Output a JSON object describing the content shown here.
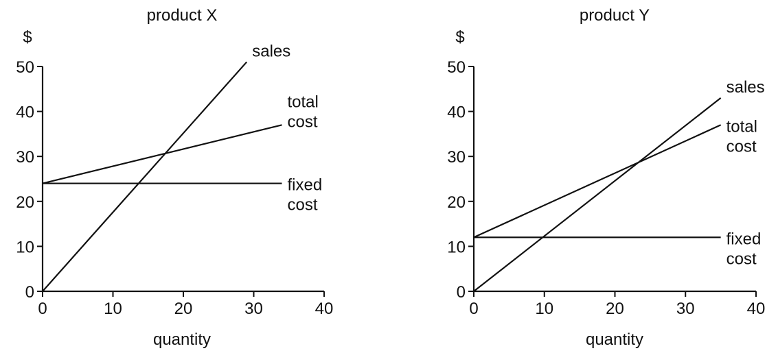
{
  "chart_data": [
    {
      "type": "line",
      "title": "product X",
      "ylabel": "$",
      "xlabel": "quantity",
      "xlim": [
        0,
        40
      ],
      "ylim": [
        0,
        50
      ],
      "xticks": [
        0,
        10,
        20,
        30,
        40
      ],
      "yticks": [
        0,
        10,
        20,
        30,
        40,
        50
      ],
      "series": [
        {
          "name": "sales",
          "x": [
            0,
            29
          ],
          "y": [
            0,
            51
          ]
        },
        {
          "name": "total cost",
          "x": [
            0,
            34
          ],
          "y": [
            24,
            37
          ]
        },
        {
          "name": "fixed cost",
          "x": [
            0,
            34
          ],
          "y": [
            24,
            24
          ]
        }
      ],
      "labels": [
        {
          "series": 0,
          "lines": [
            "sales"
          ]
        },
        {
          "series": 1,
          "lines": [
            "total",
            "cost"
          ]
        },
        {
          "series": 2,
          "lines": [
            "fixed",
            "cost"
          ]
        }
      ]
    },
    {
      "type": "line",
      "title": "product Y",
      "ylabel": "$",
      "xlabel": "quantity",
      "xlim": [
        0,
        40
      ],
      "ylim": [
        0,
        50
      ],
      "xticks": [
        0,
        10,
        20,
        30,
        40
      ],
      "yticks": [
        0,
        10,
        20,
        30,
        40,
        50
      ],
      "series": [
        {
          "name": "sales",
          "x": [
            0,
            35
          ],
          "y": [
            0,
            43
          ]
        },
        {
          "name": "total cost",
          "x": [
            0,
            35
          ],
          "y": [
            12,
            37
          ]
        },
        {
          "name": "fixed cost",
          "x": [
            0,
            35
          ],
          "y": [
            12,
            12
          ]
        }
      ],
      "labels": [
        {
          "series": 0,
          "lines": [
            "sales"
          ]
        },
        {
          "series": 1,
          "lines": [
            "total",
            "cost"
          ]
        },
        {
          "series": 2,
          "lines": [
            "fixed",
            "cost"
          ]
        }
      ]
    }
  ]
}
